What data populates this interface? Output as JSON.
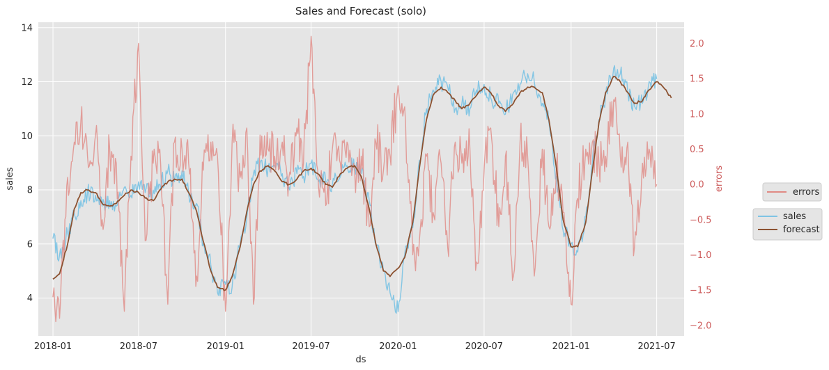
{
  "chart_data": {
    "type": "line",
    "title": "Sales and Forecast (solo)",
    "xlabel": "ds",
    "ylabel": "sales",
    "y2label": "errors",
    "x_range": [
      "2017-12-01",
      "2021-08-28"
    ],
    "ylim": [
      2.6,
      14.2
    ],
    "y2lim": [
      -2.15,
      2.3
    ],
    "x_ticks": [
      "2018-01",
      "2018-07",
      "2019-01",
      "2019-07",
      "2020-01",
      "2020-07",
      "2021-01",
      "2021-07"
    ],
    "x_tick_dates": [
      "2018-01-01",
      "2018-07-01",
      "2019-01-01",
      "2019-07-01",
      "2020-01-01",
      "2020-07-01",
      "2021-01-01",
      "2021-07-01"
    ],
    "y_ticks": [
      4,
      6,
      8,
      10,
      12,
      14
    ],
    "y_tick_labels": [
      "4",
      "6",
      "8",
      "10",
      "12",
      "14"
    ],
    "y2_ticks": [
      -2.0,
      -1.5,
      -1.0,
      -0.5,
      0.0,
      0.5,
      1.0,
      1.5,
      2.0
    ],
    "y2_tick_labels": [
      "−2.0",
      "−1.5",
      "−1.0",
      "−0.5",
      "0.0",
      "0.5",
      "1.0",
      "1.5",
      "2.0"
    ],
    "grid": true,
    "legends": [
      {
        "placement": "right",
        "entries": [
          {
            "label": "errors",
            "color": "#e08a84"
          }
        ]
      },
      {
        "placement": "right",
        "entries": [
          {
            "label": "sales",
            "color": "#7ec4e4"
          },
          {
            "label": "forecast",
            "color": "#8c5231"
          }
        ]
      }
    ],
    "series": [
      {
        "name": "forecast",
        "axis": "left",
        "color": "#8c5231",
        "x": [
          "2018-01-01",
          "2018-01-15",
          "2018-02-01",
          "2018-02-15",
          "2018-03-01",
          "2018-03-15",
          "2018-04-01",
          "2018-04-15",
          "2018-05-01",
          "2018-05-15",
          "2018-06-01",
          "2018-06-15",
          "2018-07-01",
          "2018-07-15",
          "2018-08-01",
          "2018-08-15",
          "2018-09-01",
          "2018-09-15",
          "2018-10-01",
          "2018-10-15",
          "2018-11-01",
          "2018-11-15",
          "2018-12-01",
          "2018-12-15",
          "2019-01-01",
          "2019-01-15",
          "2019-02-01",
          "2019-02-15",
          "2019-03-01",
          "2019-03-15",
          "2019-04-01",
          "2019-04-15",
          "2019-05-01",
          "2019-05-15",
          "2019-06-01",
          "2019-06-15",
          "2019-07-01",
          "2019-07-15",
          "2019-08-01",
          "2019-08-15",
          "2019-09-01",
          "2019-09-15",
          "2019-10-01",
          "2019-10-15",
          "2019-11-01",
          "2019-11-15",
          "2019-12-01",
          "2019-12-15",
          "2020-01-01",
          "2020-01-15",
          "2020-02-01",
          "2020-02-15",
          "2020-03-01",
          "2020-03-15",
          "2020-04-01",
          "2020-04-15",
          "2020-05-01",
          "2020-05-15",
          "2020-06-01",
          "2020-06-15",
          "2020-07-01",
          "2020-07-15",
          "2020-08-01",
          "2020-08-15",
          "2020-09-01",
          "2020-09-15",
          "2020-10-01",
          "2020-10-15",
          "2020-11-01",
          "2020-11-15",
          "2020-12-01",
          "2020-12-15",
          "2021-01-01",
          "2021-01-15",
          "2021-02-01",
          "2021-02-15",
          "2021-03-01",
          "2021-03-15",
          "2021-04-01",
          "2021-04-15",
          "2021-05-01",
          "2021-05-15",
          "2021-06-01",
          "2021-06-15",
          "2021-07-01",
          "2021-07-15",
          "2021-08-01"
        ],
        "values": [
          4.7,
          4.9,
          6.0,
          7.3,
          7.9,
          8.0,
          7.9,
          7.5,
          7.4,
          7.5,
          7.8,
          8.0,
          7.9,
          7.7,
          7.6,
          8.0,
          8.3,
          8.4,
          8.4,
          7.9,
          7.2,
          6.1,
          5.0,
          4.4,
          4.3,
          4.8,
          5.9,
          7.2,
          8.2,
          8.7,
          8.9,
          8.7,
          8.3,
          8.2,
          8.4,
          8.7,
          8.8,
          8.6,
          8.2,
          8.1,
          8.6,
          8.8,
          8.9,
          8.5,
          7.3,
          6.0,
          5.0,
          4.8,
          5.1,
          5.5,
          6.8,
          8.8,
          10.6,
          11.5,
          11.8,
          11.6,
          11.3,
          11.0,
          11.2,
          11.5,
          11.8,
          11.6,
          11.1,
          10.9,
          11.2,
          11.6,
          11.8,
          11.8,
          11.6,
          10.6,
          8.8,
          6.9,
          5.9,
          5.9,
          6.8,
          8.7,
          10.5,
          11.6,
          12.2,
          12.0,
          11.6,
          11.2,
          11.3,
          11.7,
          12.0,
          11.8,
          11.4
        ]
      },
      {
        "name": "sales",
        "axis": "left",
        "color": "#7ec4e4",
        "x": [
          "2018-01-01",
          "2018-01-15",
          "2018-02-01",
          "2018-02-15",
          "2018-03-01",
          "2018-03-15",
          "2018-04-01",
          "2018-04-15",
          "2018-05-01",
          "2018-05-15",
          "2018-06-01",
          "2018-06-15",
          "2018-07-01",
          "2018-07-15",
          "2018-08-01",
          "2018-08-15",
          "2018-09-01",
          "2018-09-15",
          "2018-10-01",
          "2018-10-15",
          "2018-11-01",
          "2018-11-15",
          "2018-12-01",
          "2018-12-15",
          "2019-01-01",
          "2019-01-15",
          "2019-02-01",
          "2019-02-15",
          "2019-03-01",
          "2019-03-15",
          "2019-04-01",
          "2019-04-15",
          "2019-05-01",
          "2019-05-15",
          "2019-06-01",
          "2019-06-15",
          "2019-07-01",
          "2019-07-15",
          "2019-08-01",
          "2019-08-15",
          "2019-09-01",
          "2019-09-15",
          "2019-10-01",
          "2019-10-15",
          "2019-11-01",
          "2019-11-15",
          "2019-12-01",
          "2019-12-15",
          "2020-01-01",
          "2020-01-15",
          "2020-02-01",
          "2020-02-15",
          "2020-03-01",
          "2020-03-15",
          "2020-04-01",
          "2020-04-15",
          "2020-05-01",
          "2020-05-15",
          "2020-06-01",
          "2020-06-15",
          "2020-07-01",
          "2020-07-15",
          "2020-08-01",
          "2020-08-15",
          "2020-09-01",
          "2020-09-15",
          "2020-10-01",
          "2020-10-15",
          "2020-11-01",
          "2020-11-15",
          "2020-12-01",
          "2020-12-15",
          "2021-01-01",
          "2021-01-15",
          "2021-02-01",
          "2021-02-15",
          "2021-03-01",
          "2021-03-15",
          "2021-04-01",
          "2021-04-15",
          "2021-05-01",
          "2021-05-15",
          "2021-06-01",
          "2021-06-15",
          "2021-07-01"
        ],
        "values": [
          6.2,
          5.6,
          6.4,
          7.1,
          7.6,
          7.9,
          7.8,
          7.4,
          7.6,
          7.4,
          8.1,
          7.8,
          8.3,
          7.9,
          8.0,
          8.2,
          8.7,
          8.3,
          8.7,
          7.9,
          7.5,
          6.0,
          5.2,
          4.2,
          4.5,
          4.4,
          6.0,
          7.0,
          8.6,
          9.0,
          8.8,
          8.9,
          8.6,
          8.1,
          8.6,
          8.5,
          9.0,
          8.4,
          8.3,
          8.2,
          8.5,
          8.9,
          8.8,
          8.6,
          7.6,
          6.0,
          5.0,
          4.2,
          3.5,
          5.6,
          6.6,
          9.1,
          11.0,
          11.7,
          12.0,
          11.8,
          11.0,
          11.2,
          11.0,
          11.7,
          11.9,
          11.4,
          11.2,
          10.8,
          11.6,
          11.9,
          12.3,
          12.0,
          11.2,
          10.5,
          8.5,
          6.5,
          6.0,
          5.7,
          7.0,
          9.0,
          10.6,
          11.5,
          12.5,
          12.3,
          11.6,
          11.1,
          11.2,
          12.0,
          12.1
        ]
      },
      {
        "name": "errors",
        "axis": "right",
        "color": "#e08a84",
        "x": [
          "2018-01-01",
          "2018-01-15",
          "2018-02-01",
          "2018-02-15",
          "2018-03-01",
          "2018-03-15",
          "2018-04-01",
          "2018-04-15",
          "2018-05-01",
          "2018-05-15",
          "2018-06-01",
          "2018-06-15",
          "2018-07-01",
          "2018-07-15",
          "2018-08-01",
          "2018-08-15",
          "2018-09-01",
          "2018-09-15",
          "2018-10-01",
          "2018-10-15",
          "2018-11-01",
          "2018-11-15",
          "2018-12-01",
          "2018-12-15",
          "2019-01-01",
          "2019-01-15",
          "2019-02-01",
          "2019-02-15",
          "2019-03-01",
          "2019-03-15",
          "2019-04-01",
          "2019-04-15",
          "2019-05-01",
          "2019-05-15",
          "2019-06-01",
          "2019-06-15",
          "2019-07-01",
          "2019-07-15",
          "2019-08-01",
          "2019-08-15",
          "2019-09-01",
          "2019-09-15",
          "2019-10-01",
          "2019-10-15",
          "2019-11-01",
          "2019-11-15",
          "2019-12-01",
          "2019-12-15",
          "2020-01-01",
          "2020-01-15",
          "2020-02-01",
          "2020-02-15",
          "2020-03-01",
          "2020-03-15",
          "2020-04-01",
          "2020-04-15",
          "2020-05-01",
          "2020-05-15",
          "2020-06-01",
          "2020-06-15",
          "2020-07-01",
          "2020-07-15",
          "2020-08-01",
          "2020-08-15",
          "2020-09-01",
          "2020-09-15",
          "2020-10-01",
          "2020-10-15",
          "2020-11-01",
          "2020-11-15",
          "2020-12-01",
          "2020-12-15",
          "2021-01-01",
          "2021-01-15",
          "2021-02-01",
          "2021-02-15",
          "2021-03-01",
          "2021-03-15",
          "2021-04-01",
          "2021-04-15",
          "2021-05-01",
          "2021-05-15",
          "2021-06-01",
          "2021-06-15",
          "2021-07-01"
        ],
        "values": [
          -1.6,
          -1.9,
          0.1,
          0.6,
          0.9,
          0.4,
          0.7,
          -0.5,
          0.5,
          0.3,
          -1.8,
          0.4,
          2.0,
          -0.8,
          0.3,
          0.5,
          -1.7,
          0.6,
          0.5,
          0.3,
          -1.3,
          0.2,
          0.6,
          0.4,
          -1.8,
          0.6,
          0.1,
          0.8,
          -1.7,
          0.7,
          0.5,
          0.4,
          0.6,
          0.1,
          0.8,
          0.3,
          2.1,
          0.2,
          -0.3,
          0.5,
          0.3,
          0.6,
          0.2,
          0.4,
          -0.6,
          0.6,
          0.2,
          0.4,
          1.4,
          1.1,
          -1.0,
          -0.8,
          0.4,
          -0.4,
          0.3,
          -0.9,
          0.6,
          0.3,
          0.5,
          -1.1,
          0.2,
          0.8,
          -0.6,
          0.4,
          -1.3,
          0.6,
          0.4,
          -1.3,
          0.5,
          -0.6,
          0.3,
          -0.4,
          -1.7,
          -0.2,
          0.5,
          0.6,
          0.3,
          0.4,
          1.2,
          0.4,
          0.6,
          -0.9,
          0.3,
          0.5,
          0.0
        ]
      }
    ]
  }
}
